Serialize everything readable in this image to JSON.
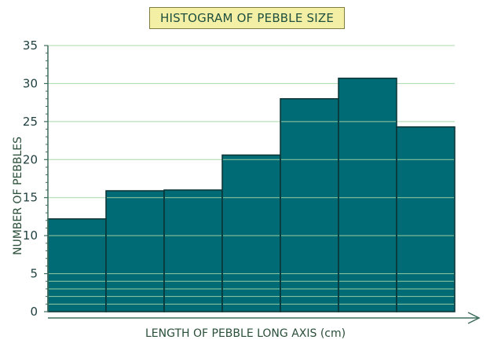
{
  "chart_data": {
    "type": "bar",
    "title": "HISTOGRAM OF PEBBLE SIZE",
    "xlabel": "LENGTH OF PEBBLE LONG AXIS (cm)",
    "ylabel": "NUMBER OF PEBBLES",
    "ylim": [
      0,
      35
    ],
    "yticks": [
      0,
      5,
      10,
      15,
      20,
      25,
      30,
      35
    ],
    "values": [
      12.2,
      15.9,
      16.0,
      20.6,
      28.0,
      30.7,
      24.3
    ],
    "grid": true,
    "bar_color": "#006b75",
    "grid_color": "#a8d8a8",
    "axis_color": "#3f6d5f",
    "title_bg": "#f3f0a6"
  }
}
